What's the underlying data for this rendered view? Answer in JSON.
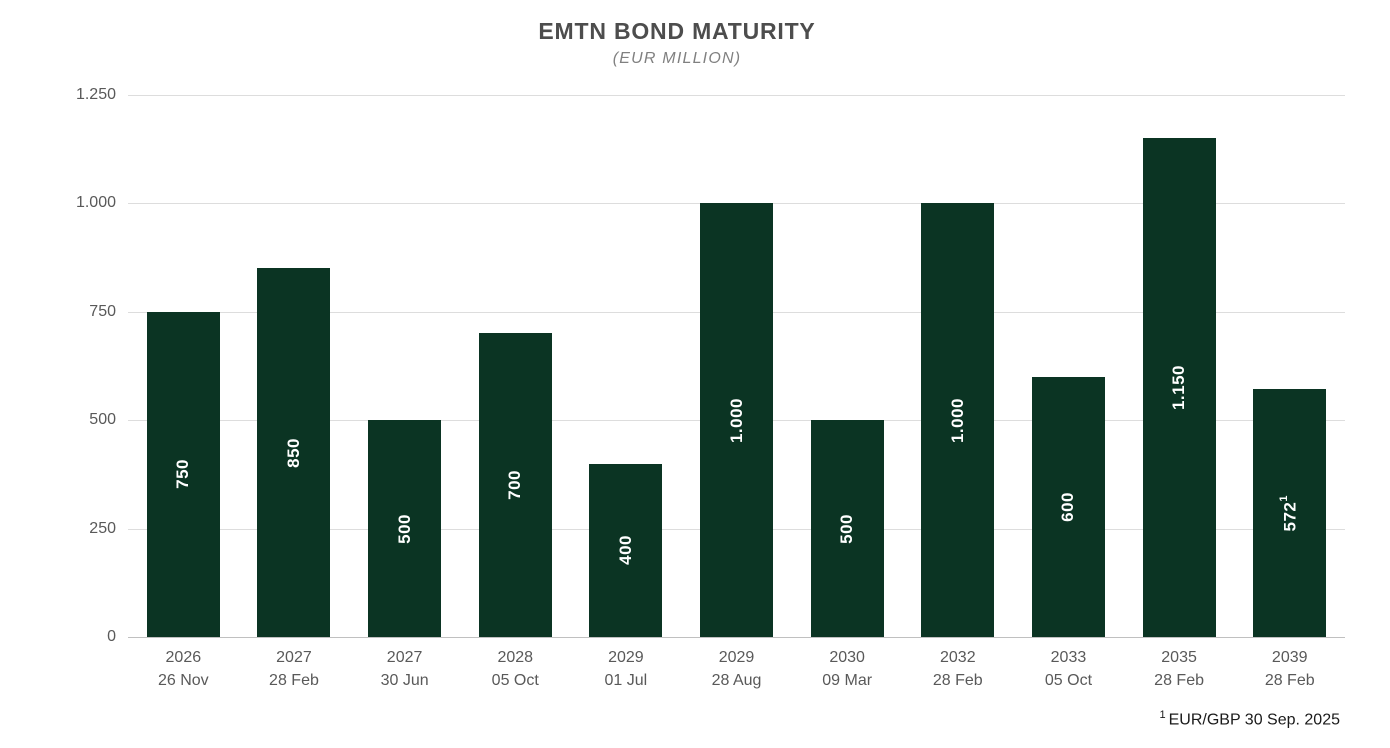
{
  "chart": {
    "title": "EMTN BOND MATURITY",
    "subtitle": "(EUR MILLION)",
    "footnote_sup": "1",
    "footnote_text": "EUR/GBP 30 Sep. 2025"
  },
  "chart_data": {
    "type": "bar",
    "title": "EMTN BOND MATURITY",
    "subtitle": "(EUR MILLION)",
    "xlabel": "",
    "ylabel": "",
    "ylim": [
      0,
      1250
    ],
    "grid": true,
    "legend": false,
    "bar_color": "#0b3423",
    "bar_label_color": "#ffffff",
    "gridline_color": "#dddddd",
    "axis_text_color": "#595959",
    "yticks": [
      {
        "value": 0,
        "label": "0"
      },
      {
        "value": 250,
        "label": "250"
      },
      {
        "value": 500,
        "label": "500"
      },
      {
        "value": 750,
        "label": "750"
      },
      {
        "value": 1000,
        "label": "1.000"
      },
      {
        "value": 1250,
        "label": "1.250"
      }
    ],
    "bars": [
      {
        "year": "2026",
        "date": "26 Nov",
        "value": 750,
        "label": "750",
        "label_sup": ""
      },
      {
        "year": "2027",
        "date": "28 Feb",
        "value": 850,
        "label": "850",
        "label_sup": ""
      },
      {
        "year": "2027",
        "date": "30 Jun",
        "value": 500,
        "label": "500",
        "label_sup": ""
      },
      {
        "year": "2028",
        "date": "05 Oct",
        "value": 700,
        "label": "700",
        "label_sup": ""
      },
      {
        "year": "2029",
        "date": "01 Jul",
        "value": 400,
        "label": "400",
        "label_sup": ""
      },
      {
        "year": "2029",
        "date": "28 Aug",
        "value": 1000,
        "label": "1.000",
        "label_sup": ""
      },
      {
        "year": "2030",
        "date": "09 Mar",
        "value": 500,
        "label": "500",
        "label_sup": ""
      },
      {
        "year": "2032",
        "date": "28 Feb",
        "value": 1000,
        "label": "1.000",
        "label_sup": ""
      },
      {
        "year": "2033",
        "date": "05 Oct",
        "value": 600,
        "label": "600",
        "label_sup": ""
      },
      {
        "year": "2035",
        "date": "28 Feb",
        "value": 1150,
        "label": "1.150",
        "label_sup": ""
      },
      {
        "year": "2039",
        "date": "28 Feb",
        "value": 572,
        "label": "572",
        "label_sup": "1"
      }
    ],
    "footnote": "1 EUR/GBP 30 Sep. 2025"
  }
}
